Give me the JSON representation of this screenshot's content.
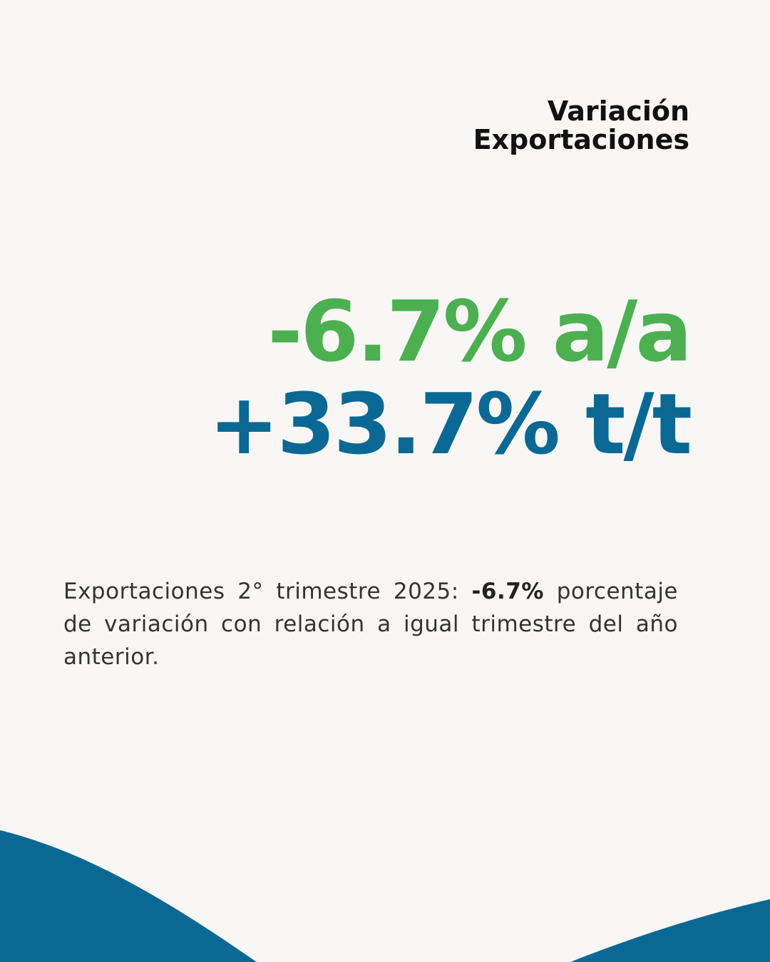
{
  "header": {
    "title_line1": "Variación",
    "title_line2": "Exportaciones"
  },
  "metrics": {
    "yoy": "-6.7% a/a",
    "qoq": "+33.7% t/t"
  },
  "description": {
    "prefix": "Exportaciones 2° trimestre 2025: ",
    "highlight": "-6.7%",
    "suffix": " porcentaje de variación con relación a igual trimestre del año anterior."
  },
  "colors": {
    "background": "#f8f7f5",
    "green": "#4caf50",
    "blue": "#0a6895",
    "wave": "#0a6895"
  }
}
